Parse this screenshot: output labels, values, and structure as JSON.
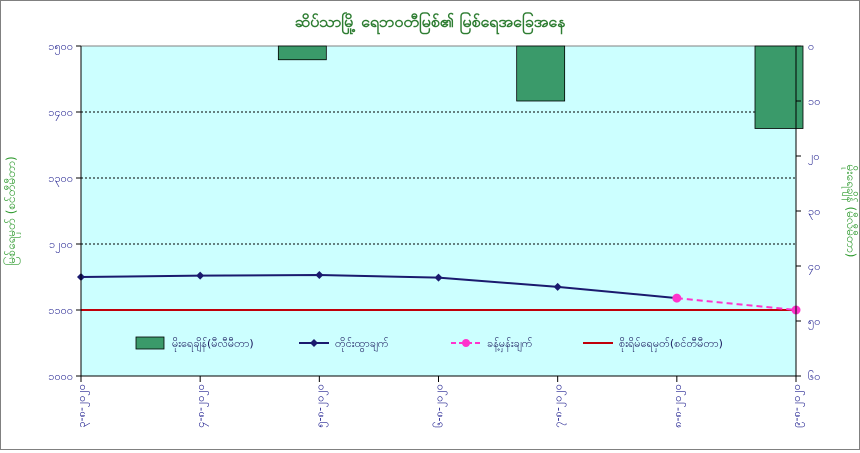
{
  "chart_data": {
    "type": "bar+line",
    "title": "ဆိပ်သာမြို့ ရေဘဝတီမြစ်၏ မြစ်ရေအခြေအနေ",
    "ylabel_left": "မြစ်ရေမှတ် (စင်တီမီတာ)",
    "ylabel_right": "မိုးရေချိန် (မီလီမီတာ)",
    "ylim_left": [
      1000,
      1500
    ],
    "ylim_right": [
      60,
      0
    ],
    "y_ticks_left": [
      "၁၅၀၀",
      "၁၄၀၀",
      "၁၃၀၀",
      "၁၂၀၀",
      "၁၁၀၀",
      "၁၀၀၀"
    ],
    "y_tick_values_left": [
      1500,
      1400,
      1300,
      1200,
      1100,
      1000
    ],
    "y_ticks_right": [
      "၀",
      "၁၀",
      "၂၀",
      "၃၀",
      "၄၀",
      "၅၀",
      "၆၀"
    ],
    "y_tick_values_right": [
      0,
      10,
      20,
      30,
      40,
      50,
      60
    ],
    "categories": [
      "၃-၈-၂၀၂၀",
      "၄-၈-၂၀၂၀",
      "၅-၈-၂၀၂၀",
      "၆-၈-၂၀၂၀",
      "၇-၈-၂၀၂၀",
      "၈-၈-၂၀၂၀",
      "၉-၈-၂၀၂၀"
    ],
    "grid": true,
    "legend_position": "bottom",
    "series": [
      {
        "name": "မိုးရေချိန်(မီလီမီတာ)",
        "kind": "bar",
        "axis": "right",
        "color": "#3a9a6a",
        "values": [
          null,
          null,
          2.5,
          null,
          10,
          null,
          15
        ]
      },
      {
        "name": "တိုင်းထွာချက်",
        "kind": "line",
        "axis": "left",
        "color": "#1a1a6e",
        "values": [
          1150,
          1152,
          1153,
          1149,
          1135,
          1118,
          null
        ]
      },
      {
        "name": "ခန့်မှန်းချက်",
        "kind": "dashed",
        "axis": "left",
        "color": "#ff33cc",
        "values": [
          null,
          null,
          null,
          null,
          null,
          1118,
          1100
        ]
      },
      {
        "name": "စိုးရိမ်ရေမှတ်(စင်တီမီတာ)",
        "kind": "hline",
        "axis": "left",
        "color": "#c0000a",
        "value": 1100
      }
    ],
    "colors": {
      "plot_background": "#ccffff",
      "axis_text": "#1a1a8c",
      "title": "#2e7d32",
      "axis_labels": "#2e9a2e"
    }
  }
}
